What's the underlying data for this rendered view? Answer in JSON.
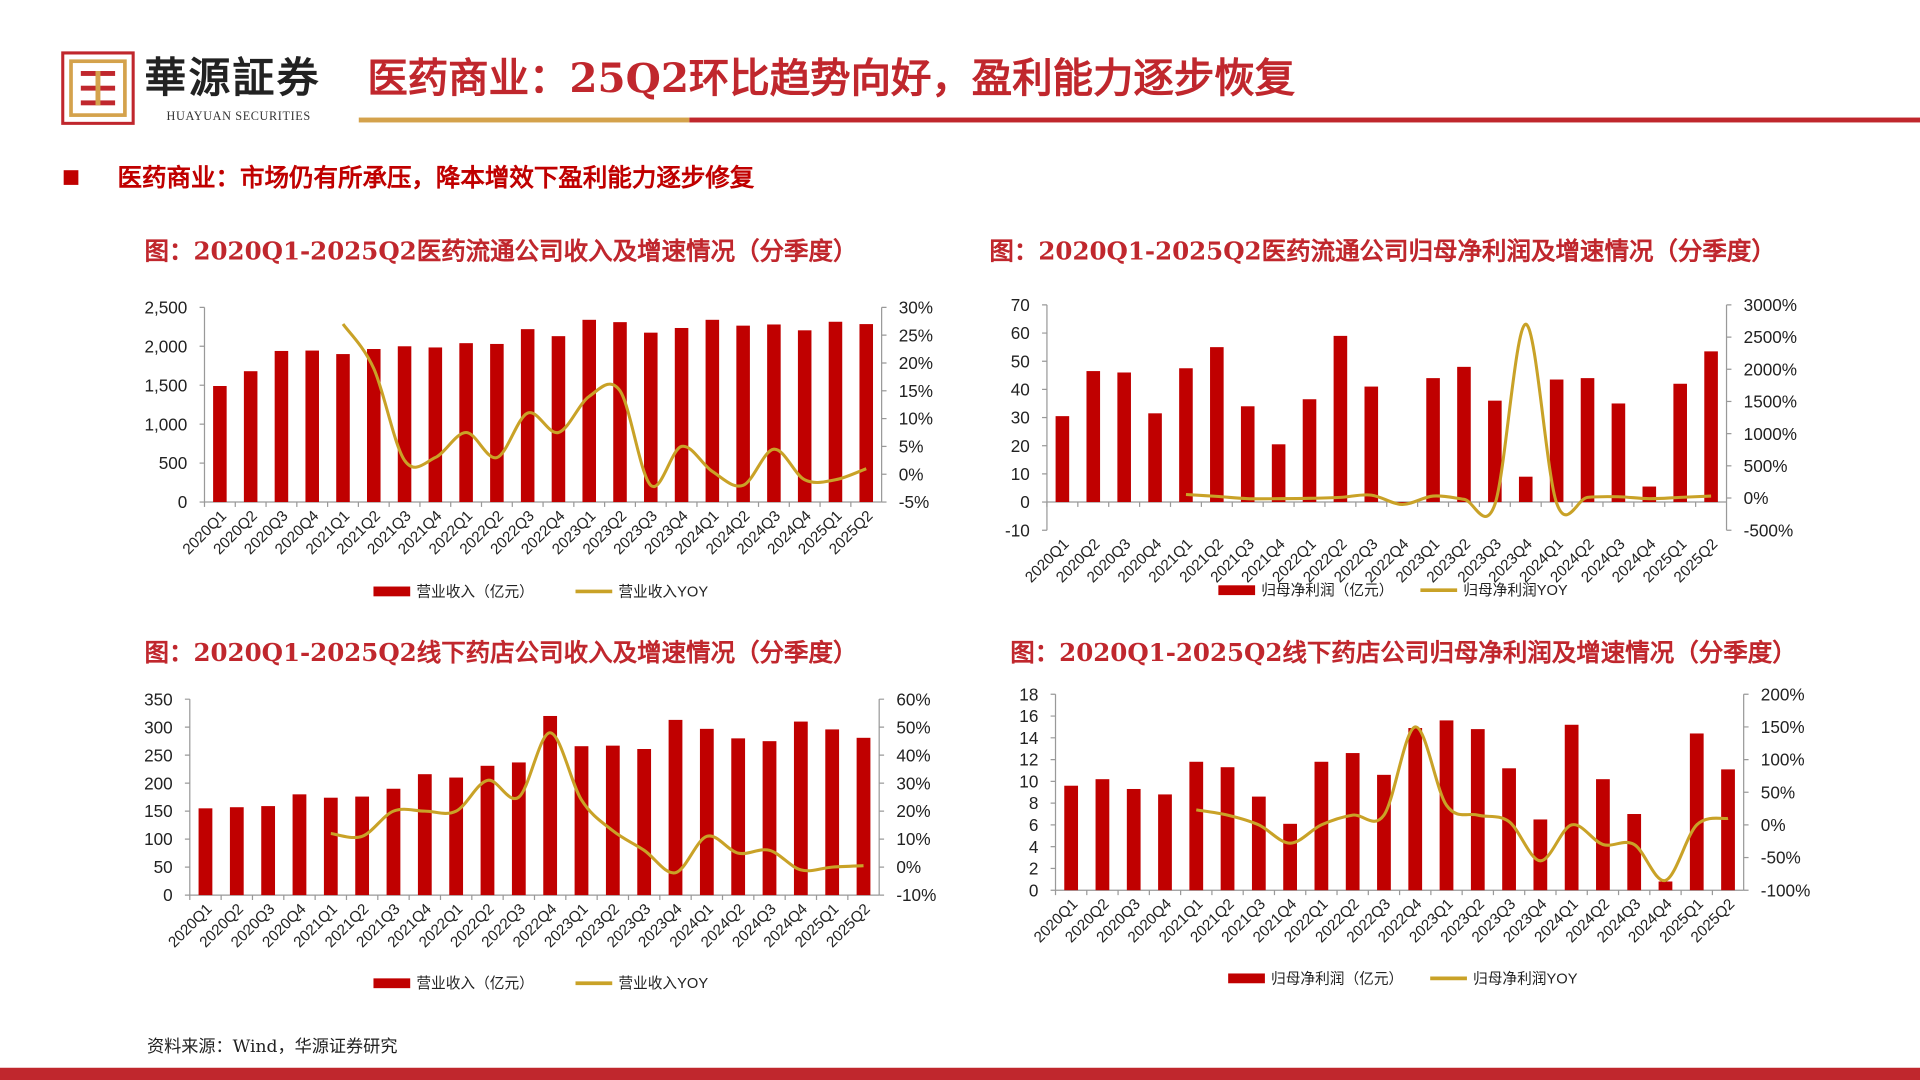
{
  "header": {
    "logo_text": "華源証券",
    "logo_sub": "HUAYUAN SECURITIES",
    "title": "医药商业：25Q2环比趋势向好，盈利能力逐步恢复"
  },
  "subtitle": "医药商业：市场仍有所承压，降本增效下盈利能力逐步修复",
  "source": "资料来源：Wind，华源证券研究",
  "colors": {
    "bar": "#c00000",
    "line": "#c9a227",
    "title": "#c0272d"
  },
  "chart_data": [
    {
      "type": "bar+line",
      "title": "图：2020Q1-2025Q2医药流通公司收入及增速情况（分季度）",
      "categories": [
        "2020Q1",
        "2020Q2",
        "2020Q3",
        "2020Q4",
        "2021Q1",
        "2021Q2",
        "2021Q3",
        "2021Q4",
        "2022Q1",
        "2022Q2",
        "2022Q3",
        "2022Q4",
        "2023Q1",
        "2023Q2",
        "2023Q3",
        "2023Q4",
        "2024Q1",
        "2024Q2",
        "2024Q3",
        "2024Q4",
        "2025Q1",
        "2025Q2"
      ],
      "bar_series": {
        "name": "营业收入（亿元）",
        "values": [
          1490,
          1680,
          1940,
          1945,
          1900,
          1965,
          2000,
          1985,
          2040,
          2030,
          2220,
          2130,
          2340,
          2310,
          2175,
          2235,
          2340,
          2265,
          2280,
          2205,
          2315,
          2285
        ]
      },
      "line_series": {
        "name": "营业收入YOY",
        "values": [
          null,
          null,
          null,
          null,
          27,
          19,
          2.5,
          3,
          7.5,
          3,
          11,
          7.5,
          14,
          15,
          -2,
          5,
          0.5,
          -2,
          4.5,
          -1,
          -1,
          1
        ]
      },
      "ylim": [
        0,
        2500
      ],
      "yticks": [
        "0",
        "500",
        "1,000",
        "1,500",
        "2,000",
        "2,500"
      ],
      "y2lim": [
        -5,
        30
      ],
      "y2ticks": [
        "-5%",
        "0%",
        "5%",
        "10%",
        "15%",
        "20%",
        "25%",
        "30%"
      ],
      "legend": "bottom"
    },
    {
      "type": "bar+line",
      "title": "图：2020Q1-2025Q2医药流通公司归母净利润及增速情况（分季度）",
      "categories": [
        "2020Q1",
        "2020Q2",
        "2020Q3",
        "2020Q4",
        "2021Q1",
        "2021Q2",
        "2021Q3",
        "2021Q4",
        "2022Q1",
        "2022Q2",
        "2022Q3",
        "2022Q4",
        "2023Q1",
        "2023Q2",
        "2023Q3",
        "2023Q4",
        "2024Q1",
        "2024Q2",
        "2024Q3",
        "2024Q4",
        "2025Q1",
        "2025Q2"
      ],
      "bar_series": {
        "name": "归母净利润（亿元）",
        "values": [
          30.5,
          46.5,
          46,
          31.5,
          47.5,
          55,
          34,
          20.5,
          36.5,
          59,
          41,
          -0.5,
          44,
          48,
          36,
          9,
          43.5,
          44,
          35,
          5.5,
          42,
          53.5
        ]
      },
      "line_series": {
        "name": "归母净利润YOY",
        "values": [
          null,
          null,
          null,
          null,
          55,
          25,
          -10,
          -10,
          -5,
          10,
          45,
          -100,
          30,
          -20,
          -100,
          2700,
          -80,
          10,
          20,
          -10,
          10,
          30
        ]
      },
      "ylim": [
        -10,
        70
      ],
      "yticks": [
        "-10",
        "0",
        "10",
        "20",
        "30",
        "40",
        "50",
        "60",
        "70"
      ],
      "y2lim": [
        -500,
        3000
      ],
      "y2ticks": [
        "-500%",
        "0%",
        "500%",
        "1000%",
        "1500%",
        "2000%",
        "2500%",
        "3000%"
      ],
      "legend": "bottom"
    },
    {
      "type": "bar+line",
      "title": "图：2020Q1-2025Q2线下药店公司收入及增速情况（分季度）",
      "categories": [
        "2020Q1",
        "2020Q2",
        "2020Q3",
        "2020Q4",
        "2021Q1",
        "2021Q2",
        "2021Q3",
        "2021Q4",
        "2022Q1",
        "2022Q2",
        "2022Q3",
        "2022Q4",
        "2023Q1",
        "2023Q2",
        "2023Q3",
        "2023Q4",
        "2024Q1",
        "2024Q2",
        "2024Q3",
        "2024Q4",
        "2025Q1",
        "2025Q2"
      ],
      "bar_series": {
        "name": "营业收入（亿元）",
        "values": [
          155,
          157,
          159,
          180,
          174,
          176,
          190,
          216,
          210,
          231,
          237,
          320,
          266,
          267,
          261,
          313,
          297,
          280,
          275,
          310,
          296,
          281
        ]
      },
      "line_series": {
        "name": "营业收入YOY",
        "values": [
          null,
          null,
          null,
          null,
          12,
          11,
          20,
          20,
          20,
          31,
          25,
          48,
          24,
          13,
          6,
          -2,
          11,
          5,
          6,
          -1,
          0,
          0.5
        ]
      },
      "ylim": [
        0,
        350
      ],
      "yticks": [
        "0",
        "50",
        "100",
        "150",
        "200",
        "250",
        "300",
        "350"
      ],
      "y2lim": [
        -10,
        60
      ],
      "y2ticks": [
        "-10%",
        "0%",
        "10%",
        "20%",
        "30%",
        "40%",
        "50%",
        "60%"
      ],
      "legend": "bottom"
    },
    {
      "type": "bar+line",
      "title": "图：2020Q1-2025Q2线下药店公司归母净利润及增速情况（分季度）",
      "categories": [
        "2020Q1",
        "2020Q2",
        "2020Q3",
        "2020Q4",
        "2021Q1",
        "2021Q2",
        "2021Q3",
        "2021Q4",
        "2022Q1",
        "2022Q2",
        "2022Q3",
        "2022Q4",
        "2023Q1",
        "2023Q2",
        "2023Q3",
        "2023Q4",
        "2024Q1",
        "2024Q2",
        "2024Q3",
        "2024Q4",
        "2025Q1",
        "2025Q2"
      ],
      "bar_series": {
        "name": "归母净利润（亿元）",
        "values": [
          9.6,
          10.2,
          9.3,
          8.8,
          11.8,
          11.3,
          8.6,
          6.1,
          11.8,
          12.6,
          10.6,
          14.9,
          15.6,
          14.8,
          11.2,
          6.5,
          15.2,
          10.2,
          7.0,
          0.8,
          14.4,
          11.1
        ]
      },
      "line_series": {
        "name": "归母净利润YOY",
        "values": [
          null,
          null,
          null,
          null,
          23,
          15,
          0,
          -28,
          0,
          15,
          15,
          150,
          30,
          15,
          5,
          -55,
          0,
          -30,
          -30,
          -85,
          0,
          10
        ]
      },
      "ylim": [
        0,
        18
      ],
      "yticks": [
        "0",
        "2",
        "4",
        "6",
        "8",
        "10",
        "12",
        "14",
        "16",
        "18"
      ],
      "y2lim": [
        -100,
        200
      ],
      "y2ticks": [
        "-100%",
        "-50%",
        "0%",
        "50%",
        "100%",
        "150%",
        "200%"
      ],
      "legend": "bottom"
    }
  ]
}
